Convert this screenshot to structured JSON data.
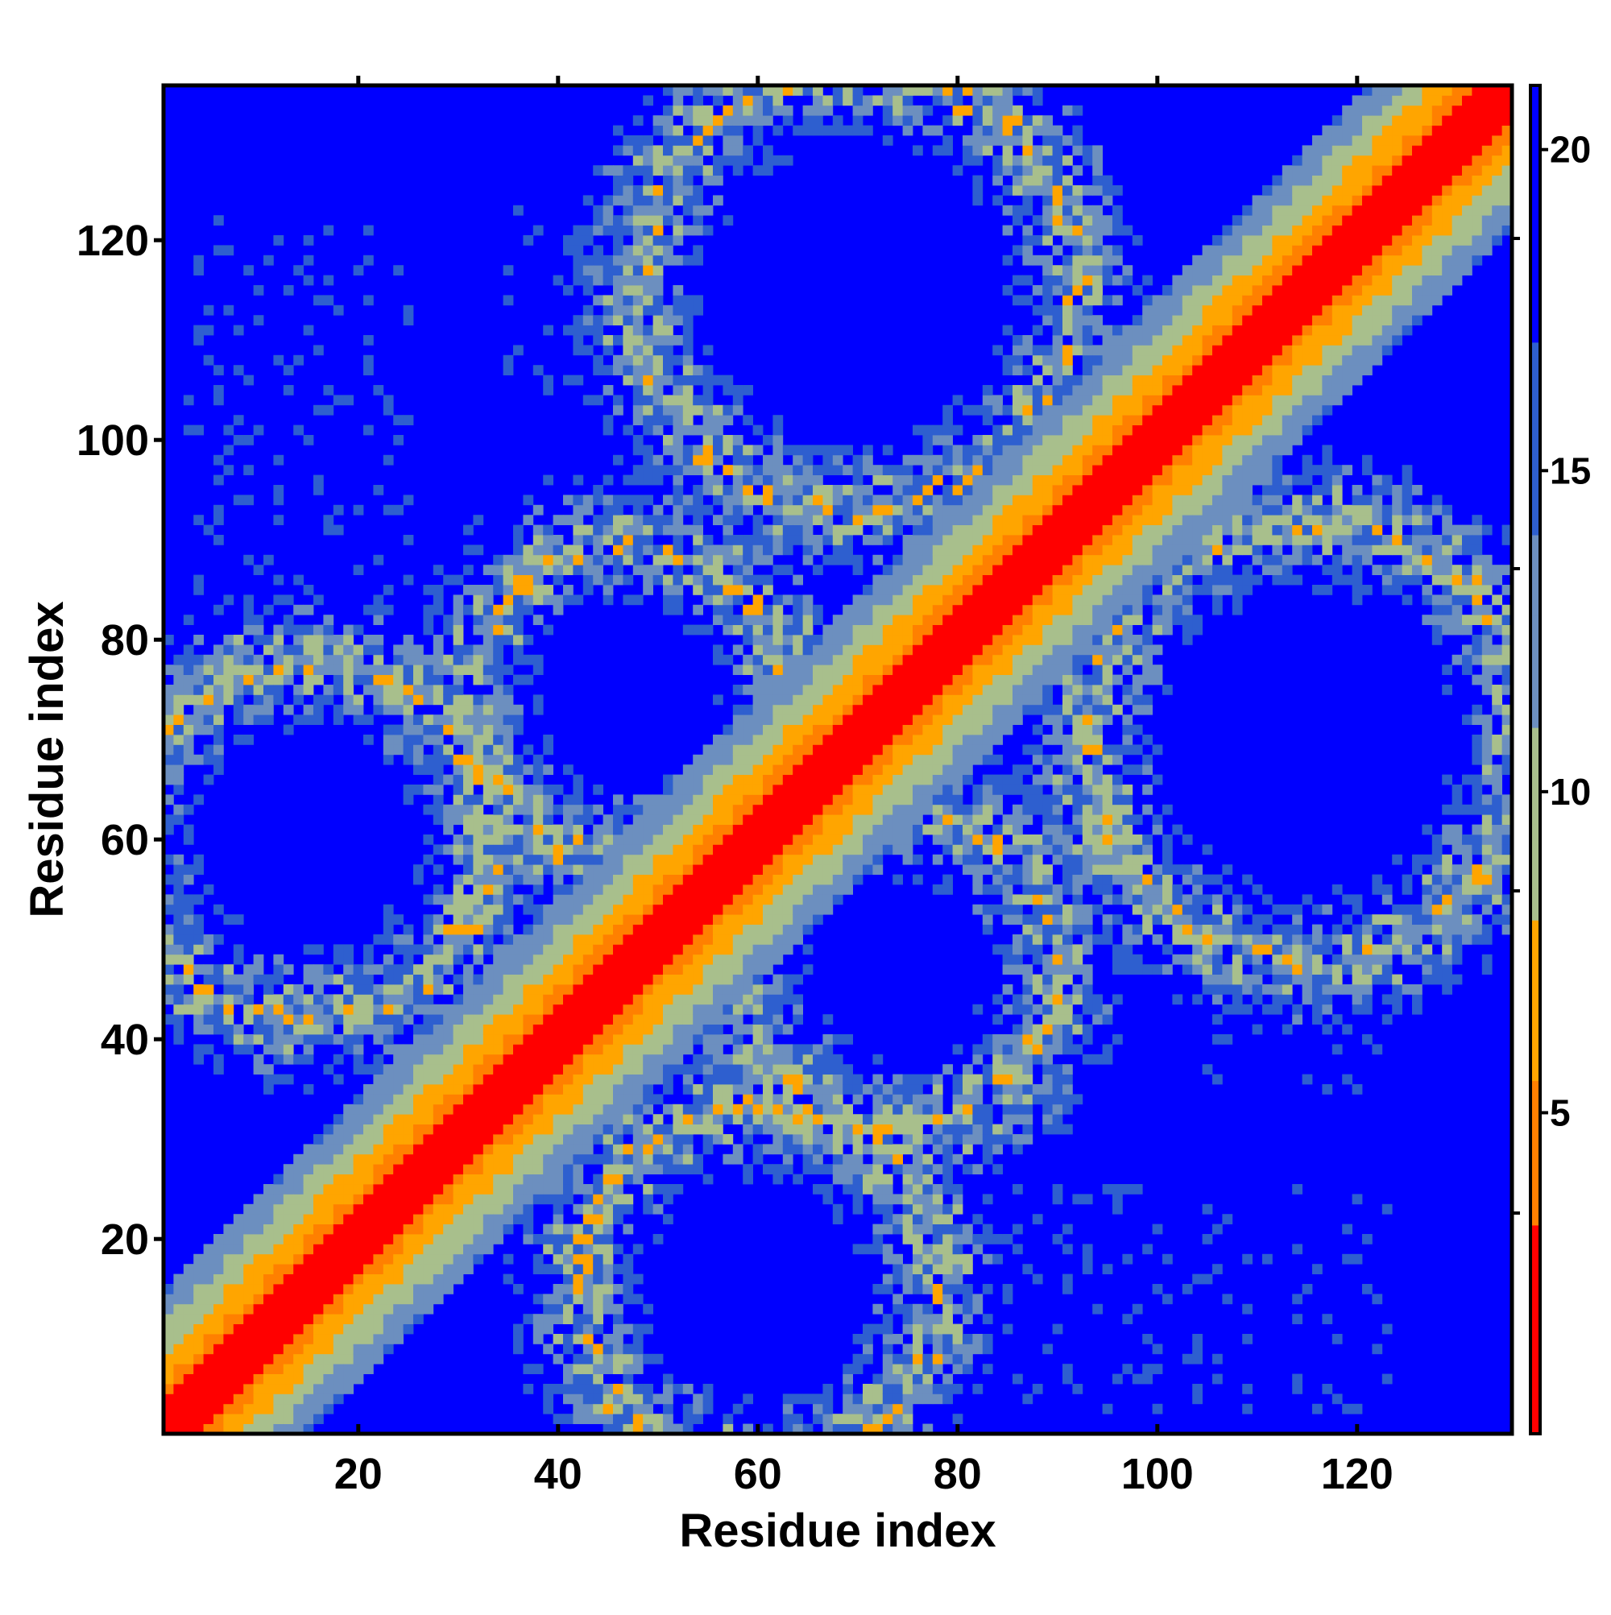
{
  "chart_data": {
    "type": "heatmap",
    "title": "",
    "xlabel": "Residue index",
    "ylabel": "Residue index",
    "xlim": [
      1,
      135
    ],
    "ylim": [
      1,
      135
    ],
    "x_ticks": [
      20,
      40,
      60,
      80,
      100,
      120
    ],
    "y_ticks": [
      20,
      40,
      60,
      80,
      100,
      120
    ],
    "n_residues": 135,
    "colorbar": {
      "range": [
        0,
        21
      ],
      "ticks": [
        5,
        10,
        15,
        20
      ],
      "colors": [
        "#ff0000",
        "#ff8000",
        "#ffa500",
        "#a8bf8c",
        "#6c8fbf",
        "#2e5fcf",
        "#0000ff"
      ]
    },
    "background_color": "#0000ff",
    "structure": {
      "diagonal_band": "distance near 0 along diagonal, rising to ~14 about 14 residues off-diagonal",
      "contact_rings": [
        {
          "cx": 70,
          "cy": 115,
          "radius": 22
        },
        {
          "cx": 115,
          "cy": 70,
          "radius": 22
        },
        {
          "cx": 15,
          "cy": 60,
          "radius": 18
        },
        {
          "cx": 60,
          "cy": 15,
          "radius": 18
        },
        {
          "cx": 47,
          "cy": 74,
          "radius": 16
        },
        {
          "cx": 74,
          "cy": 47,
          "radius": 16
        }
      ],
      "sparse_regions": [
        {
          "x": [
            3,
            25
          ],
          "y": [
            85,
            123
          ]
        },
        {
          "x": [
            85,
            123
          ],
          "y": [
            3,
            25
          ]
        },
        {
          "x": [
            35,
            50
          ],
          "y": [
            105,
            123
          ]
        },
        {
          "x": [
            105,
            123
          ],
          "y": [
            35,
            50
          ]
        }
      ]
    }
  }
}
